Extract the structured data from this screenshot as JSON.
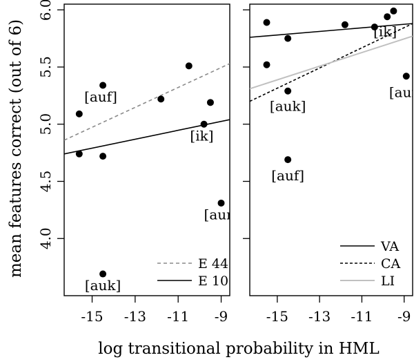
{
  "chart_data": [
    {
      "type": "scatter",
      "panel": "left",
      "xlim": [
        -16.3,
        -8.6
      ],
      "ylim": [
        3.5,
        6.05
      ],
      "x_ticks": [
        -15,
        -13,
        -11,
        -9
      ],
      "x_tick_labels": [
        "-15",
        "-13",
        "-11",
        "-9"
      ],
      "y_ticks": [
        4.0,
        4.5,
        5.0,
        5.5,
        6.0
      ],
      "y_tick_labels": [
        "4.0",
        "4.5",
        "5.0",
        "5.5",
        "6.0"
      ],
      "xlabel": "log transitional probability in HML",
      "ylabel": "mean features correct (out of 6)",
      "points": [
        {
          "x": -15.6,
          "y": 5.09
        },
        {
          "x": -15.6,
          "y": 4.74
        },
        {
          "x": -14.5,
          "y": 5.34
        },
        {
          "x": -14.5,
          "y": 4.72
        },
        {
          "x": -14.5,
          "y": 3.69
        },
        {
          "x": -11.8,
          "y": 5.22
        },
        {
          "x": -10.5,
          "y": 5.51
        },
        {
          "x": -9.8,
          "y": 5.0
        },
        {
          "x": -9.5,
          "y": 5.19
        },
        {
          "x": -9.0,
          "y": 4.31
        }
      ],
      "annotations": [
        {
          "text": "[auf]",
          "x": -14.6,
          "y": 5.24
        },
        {
          "text": "[ik]",
          "x": -9.9,
          "y": 4.9
        },
        {
          "text": "[aur]",
          "x": -9.0,
          "y": 4.21
        },
        {
          "text": "[auk]",
          "x": -14.5,
          "y": 3.59
        }
      ],
      "series": [
        {
          "name": "E 44",
          "style": "dashed",
          "color": "#8a8a8a",
          "x": [
            -16.3,
            -8.6
          ],
          "y": [
            4.86,
            5.53
          ]
        },
        {
          "name": "E 10",
          "style": "solid",
          "color": "#000000",
          "x": [
            -16.3,
            -8.6
          ],
          "y": [
            4.74,
            5.04
          ]
        }
      ],
      "legend_position": "bottom-right"
    },
    {
      "type": "scatter",
      "panel": "right",
      "xlim": [
        -16.3,
        -8.6
      ],
      "ylim": [
        3.5,
        6.05
      ],
      "x_ticks": [
        -15,
        -13,
        -11,
        -9
      ],
      "x_tick_labels": [
        "-15",
        "-13",
        "-11",
        "-9"
      ],
      "y_ticks": [
        4.0,
        4.5,
        5.0,
        5.5,
        6.0
      ],
      "points": [
        {
          "x": -15.5,
          "y": 5.89
        },
        {
          "x": -15.5,
          "y": 5.52
        },
        {
          "x": -14.5,
          "y": 5.75
        },
        {
          "x": -14.5,
          "y": 5.29
        },
        {
          "x": -14.5,
          "y": 4.69
        },
        {
          "x": -11.8,
          "y": 5.87
        },
        {
          "x": -10.4,
          "y": 5.85
        },
        {
          "x": -9.8,
          "y": 5.94
        },
        {
          "x": -9.5,
          "y": 5.99
        },
        {
          "x": -8.9,
          "y": 5.42
        }
      ],
      "annotations": [
        {
          "text": "[ik]",
          "x": -9.9,
          "y": 5.81
        },
        {
          "text": "[auk]",
          "x": -14.5,
          "y": 5.16
        },
        {
          "text": "[auf]",
          "x": -14.5,
          "y": 4.55
        },
        {
          "text": "[aur]",
          "x": -8.9,
          "y": 5.28
        }
      ],
      "series": [
        {
          "name": "VA",
          "style": "solid",
          "color": "#000000",
          "x": [
            -16.3,
            -8.6
          ],
          "y": [
            5.76,
            5.88
          ]
        },
        {
          "name": "CA",
          "style": "dotted",
          "color": "#000000",
          "x": [
            -16.3,
            -8.6
          ],
          "y": [
            5.2,
            5.88
          ]
        },
        {
          "name": "LI",
          "style": "solid",
          "color": "#c0c0c0",
          "x": [
            -16.3,
            -8.6
          ],
          "y": [
            5.31,
            5.77
          ]
        }
      ],
      "legend_position": "bottom-right"
    }
  ]
}
